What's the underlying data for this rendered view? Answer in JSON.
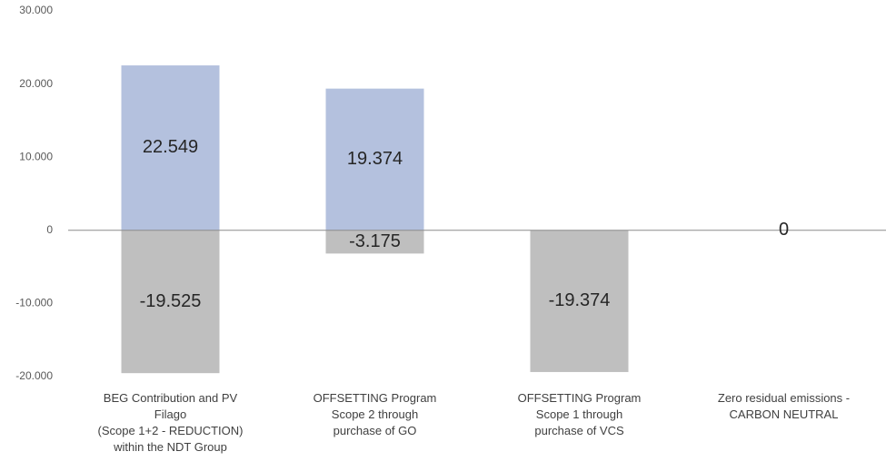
{
  "chart_data": {
    "type": "bar",
    "categories": [
      "BEG Contribution and PV\nFilago\n(Scope 1+2 - REDUCTION)\nwithin the NDT Group",
      "OFFSETTING Program\nScope 2 through\npurchase of GO",
      "OFFSETTING Program\nScope 1  through\npurchase of VCS",
      "Zero residual emissions -\nCARBON NEUTRAL"
    ],
    "series": [
      {
        "color": "#b4c1de",
        "values": [
          22549,
          19374,
          null,
          0
        ],
        "value_labels": [
          "22.549",
          "19.374",
          null,
          "0"
        ]
      },
      {
        "color": "#bfbfbf",
        "values": [
          -19525,
          -3175,
          -19374,
          null
        ],
        "value_labels": [
          "-19.525",
          "-3.175",
          "-19.374",
          null
        ]
      }
    ],
    "ylim": [
      -20000,
      30000
    ],
    "yticks": [
      {
        "value": 30000,
        "label": "30.000"
      },
      {
        "value": 20000,
        "label": "20.000"
      },
      {
        "value": 10000,
        "label": "10.000"
      },
      0,
      {
        "value": -10000,
        "label": "-10.000"
      },
      {
        "value": -20000,
        "label": "-20.000"
      }
    ],
    "grid": false
  }
}
